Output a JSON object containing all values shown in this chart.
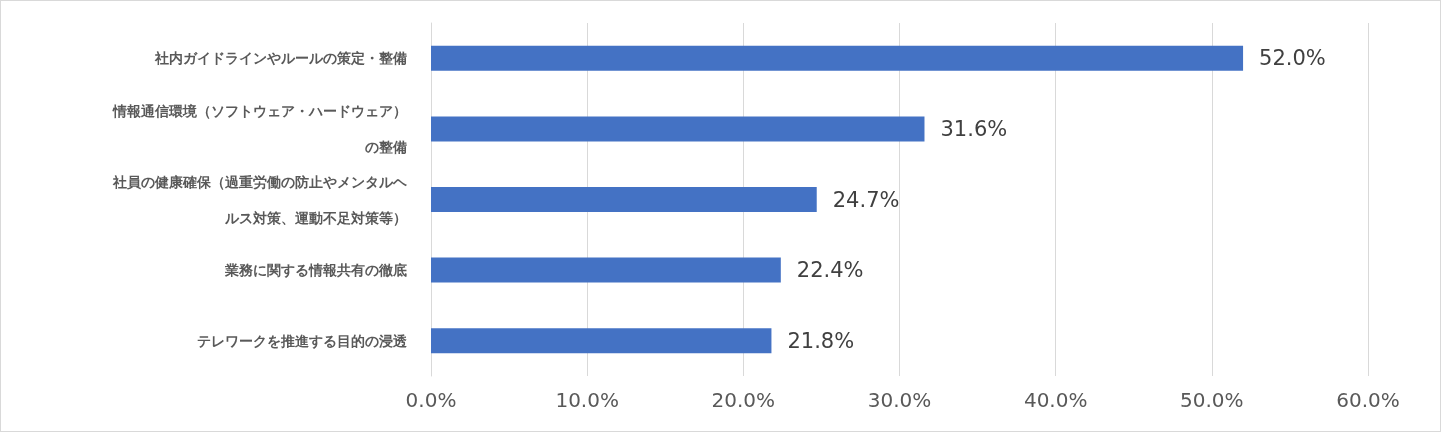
{
  "chart_data": {
    "type": "bar",
    "orientation": "horizontal",
    "categories": [
      "社内ガイドラインやルールの策定・整備",
      "情報通信環境（ソフトウェア・ハードウェア）の整備",
      "社員の健康確保（過重労働の防止やメンタルヘルス対策、運動不足対策等）",
      "業務に関する情報共有の徹底",
      "テレワークを推進する目的の浸透"
    ],
    "values": [
      52.0,
      31.6,
      24.7,
      22.4,
      21.8
    ],
    "value_labels": [
      "52.0%",
      "31.6%",
      "24.7%",
      "22.4%",
      "21.8%"
    ],
    "color": "#4472c4",
    "xlim": [
      0,
      60
    ],
    "xticks": [
      {
        "value": 0,
        "label": "0.0%"
      },
      {
        "value": 10,
        "label": "10.0%"
      },
      {
        "value": 20,
        "label": "20.0%"
      },
      {
        "value": 30,
        "label": "30.0%"
      },
      {
        "value": 40,
        "label": "40.0%"
      },
      {
        "value": 50,
        "label": "50.0%"
      },
      {
        "value": 60,
        "label": "60.0%"
      }
    ],
    "grid": "x"
  }
}
